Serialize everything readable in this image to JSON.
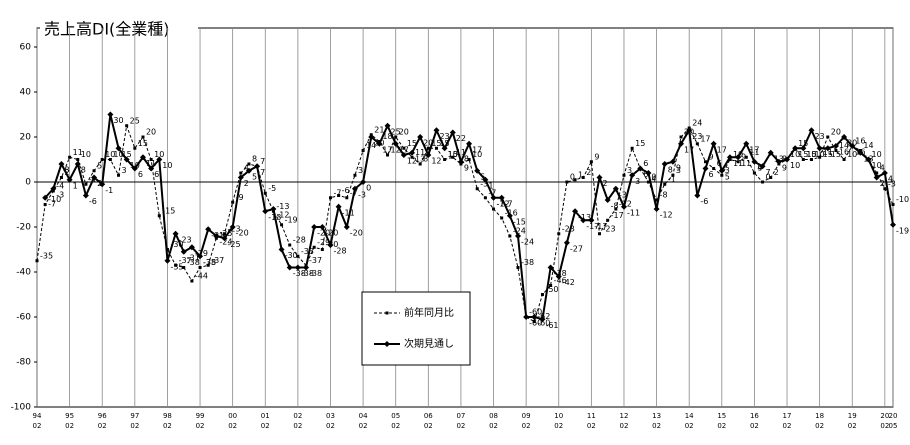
{
  "chart_data": {
    "type": "line",
    "title": "売上高DI(全業種)",
    "categories": [
      {
        "year": "94",
        "month": "02"
      },
      null,
      null,
      null,
      {
        "year": "95",
        "month": "02"
      },
      null,
      null,
      null,
      {
        "year": "96",
        "month": "02"
      },
      null,
      null,
      null,
      {
        "year": "97",
        "month": "02"
      },
      null,
      null,
      null,
      {
        "year": "98",
        "month": "02"
      },
      null,
      null,
      null,
      {
        "year": "99",
        "month": "02"
      },
      null,
      null,
      null,
      {
        "year": "00",
        "month": "02"
      },
      null,
      null,
      null,
      {
        "year": "01",
        "month": "02"
      },
      null,
      null,
      null,
      {
        "year": "02",
        "month": "02"
      },
      null,
      null,
      null,
      {
        "year": "03",
        "month": "02"
      },
      null,
      null,
      null,
      {
        "year": "04",
        "month": "02"
      },
      null,
      null,
      null,
      {
        "year": "05",
        "month": "02"
      },
      null,
      null,
      null,
      {
        "year": "06",
        "month": "02"
      },
      null,
      null,
      null,
      {
        "year": "07",
        "month": "02"
      },
      null,
      null,
      null,
      {
        "year": "08",
        "month": "02"
      },
      null,
      null,
      null,
      {
        "year": "09",
        "month": "02"
      },
      null,
      null,
      null,
      {
        "year": "10",
        "month": "02"
      },
      null,
      null,
      null,
      {
        "year": "11",
        "month": "02"
      },
      null,
      null,
      null,
      {
        "year": "12",
        "month": "02"
      },
      null,
      null,
      null,
      {
        "year": "13",
        "month": "02"
      },
      null,
      null,
      null,
      {
        "year": "14",
        "month": "02"
      },
      null,
      null,
      null,
      {
        "year": "15",
        "month": "02"
      },
      null,
      null,
      null,
      {
        "year": "16",
        "month": "02"
      },
      null,
      null,
      null,
      {
        "year": "17",
        "month": "02"
      },
      null,
      null,
      null,
      {
        "year": "18",
        "month": "02"
      },
      null,
      null,
      null,
      {
        "year": "19",
        "month": "02"
      },
      null,
      null,
      null,
      {
        "year": "20",
        "month": "02"
      },
      {
        "year": "20",
        "month": "05"
      }
    ],
    "series": [
      {
        "name": "前年同月比",
        "color": "#000000",
        "style": "dashed",
        "values": [
          -35,
          -10,
          -4,
          2,
          11,
          10,
          -1,
          5,
          10,
          10,
          3,
          25,
          15,
          20,
          10,
          -15,
          -30,
          -37,
          -38,
          -44,
          -38,
          -37,
          -25,
          -23,
          -9,
          4,
          8,
          7,
          -5,
          -13,
          -19,
          -28,
          -33,
          -37,
          -29,
          -30,
          -7,
          -6,
          -7,
          3,
          14,
          21,
          18,
          12,
          20,
          15,
          11,
          8,
          15,
          15,
          10,
          11,
          8,
          10,
          -3,
          -7,
          -12,
          -16,
          -24,
          -38,
          -60,
          -62,
          -50,
          -46,
          -23,
          0,
          1,
          2,
          9,
          -23,
          -17,
          -12,
          3,
          15,
          6,
          0,
          -8,
          -1,
          3,
          20,
          24,
          17,
          9,
          6,
          3,
          10,
          9,
          11,
          4,
          0,
          2,
          8,
          10,
          15,
          10,
          10,
          11,
          20,
          14,
          10,
          16,
          14,
          10,
          4,
          -3,
          -10
        ]
      },
      {
        "name": "次期見通し",
        "color": "#000000",
        "style": "solid",
        "values": [
          null,
          -7,
          -3,
          8,
          1,
          8,
          -6,
          2,
          -1,
          30,
          15,
          10,
          6,
          11,
          6,
          10,
          -35,
          -23,
          -31,
          -29,
          -33,
          -21,
          -24,
          -25,
          -20,
          2,
          5,
          7,
          -13,
          -12,
          -30,
          -38,
          -38,
          -38,
          -20,
          -20,
          -28,
          -11,
          -20,
          -3,
          0,
          20,
          17,
          25,
          17,
          12,
          13,
          20,
          12,
          23,
          15,
          22,
          9,
          17,
          5,
          1,
          -7,
          -7,
          -15,
          -24,
          -60,
          -60,
          -61,
          -38,
          -42,
          -27,
          -13,
          -17,
          -17,
          2,
          -8,
          -3,
          -11,
          3,
          6,
          4,
          -12,
          8,
          9,
          17,
          23,
          -6,
          6,
          17,
          5,
          11,
          11,
          17,
          9,
          7,
          13,
          9,
          10,
          15,
          15,
          23,
          15,
          15,
          16,
          20,
          16,
          13,
          10,
          2,
          4,
          -19
        ]
      }
    ],
    "ylim": [
      -100,
      60
    ],
    "yticks": [
      60,
      40,
      20,
      0,
      -20,
      -40,
      -60,
      -80,
      -100
    ]
  }
}
